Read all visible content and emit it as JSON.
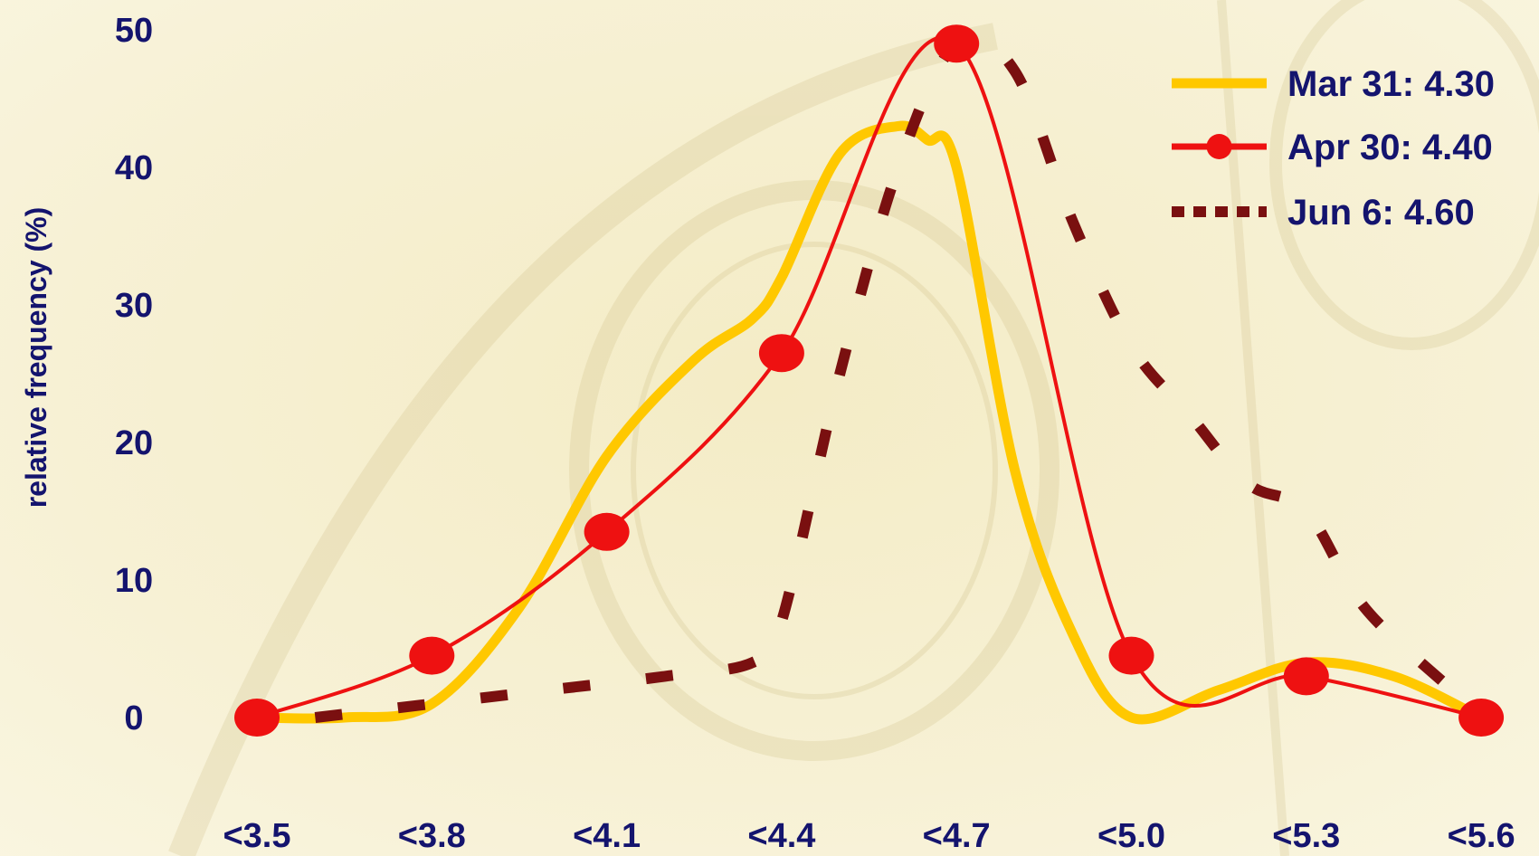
{
  "chart_data": {
    "type": "line",
    "title": "",
    "xlabel": "",
    "ylabel": "relative frequency (%)",
    "categories": [
      "<3.5",
      "<3.8",
      "<4.1",
      "<4.4",
      "<4.7",
      "<5.0",
      "<5.3",
      "<5.6"
    ],
    "yticks": [
      "0",
      "10",
      "20",
      "30",
      "40",
      "50"
    ],
    "ylim": [
      0,
      50
    ],
    "grid": false,
    "legend_position": "top-right",
    "series": [
      {
        "name": "Mar 31: 4.30",
        "style": "solid-thick",
        "color": "#ffc800",
        "x": [
          3.5,
          3.65,
          3.8,
          3.95,
          4.1,
          4.25,
          4.35,
          4.4,
          4.5,
          4.6,
          4.65,
          4.7,
          4.8,
          4.9,
          5.0,
          5.15,
          5.3,
          5.45,
          5.6
        ],
        "values": [
          0,
          0,
          1,
          8,
          19,
          26,
          29,
          32,
          41,
          43,
          42,
          40,
          18,
          6,
          0,
          2,
          4,
          3,
          0
        ]
      },
      {
        "name": "Apr 30: 4.40",
        "style": "line-with-markers",
        "color": "#ee1111",
        "x": [
          3.5,
          3.8,
          4.1,
          4.4,
          4.7,
          5.0,
          5.3,
          5.6
        ],
        "values": [
          0,
          4.5,
          13.5,
          26.5,
          49,
          4.5,
          3,
          0
        ]
      },
      {
        "name": "Jun 6: 4.60",
        "style": "dashed-thick",
        "color": "#7a1010",
        "x": [
          3.6,
          3.8,
          4.0,
          4.2,
          4.35,
          4.4,
          4.5,
          4.6,
          4.7,
          4.8,
          4.9,
          5.0,
          5.1,
          5.2,
          5.3,
          5.4,
          5.55,
          5.6
        ],
        "values": [
          0,
          1,
          2,
          3,
          4,
          7,
          25,
          40,
          49,
          47,
          36,
          27,
          22,
          17,
          15,
          8,
          2,
          0
        ]
      }
    ]
  },
  "legend": {
    "items": [
      "Mar 31: 4.30",
      "Apr 30: 4.40",
      "Jun 6: 4.60"
    ]
  }
}
